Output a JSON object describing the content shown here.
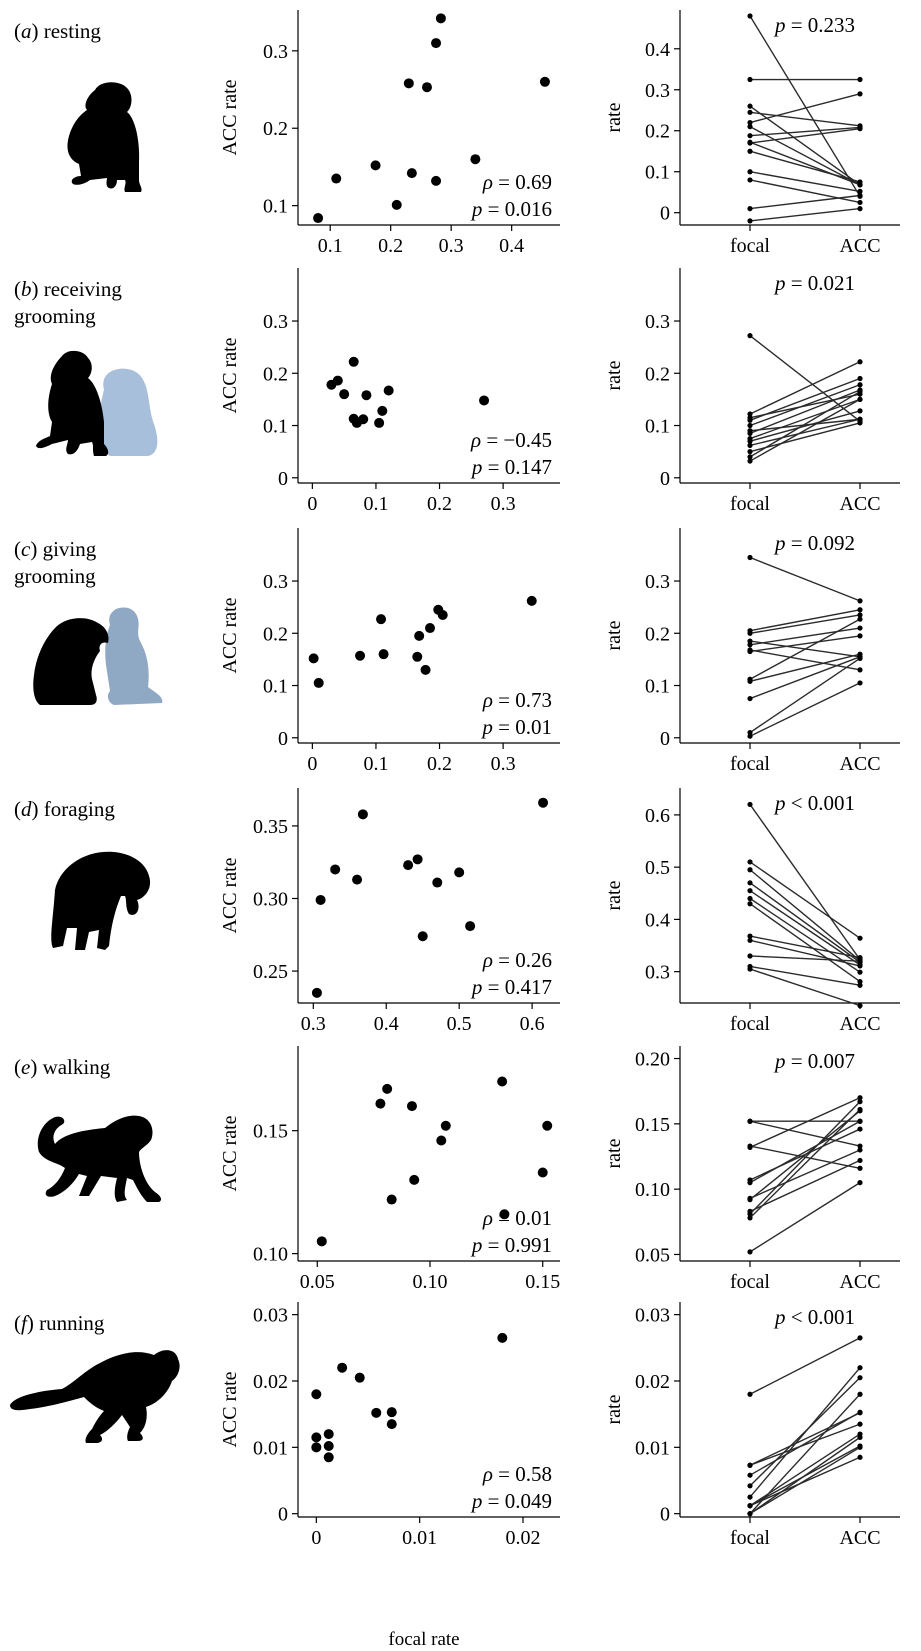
{
  "figure": {
    "xlabel_bottom": "focal rate"
  },
  "colors": {
    "ink": "#000000",
    "pair_line": "#2b2b2b",
    "groomer_light": "#a8bfdb",
    "groomer_medium": "#8fa9c4"
  },
  "rows": [
    {
      "id": "a",
      "letter": "a",
      "label_lines": [
        "resting"
      ],
      "icon": "monkey-sitting-icon"
    },
    {
      "id": "b",
      "letter": "b",
      "label_lines": [
        "receiving",
        "grooming"
      ],
      "icon": "monkey-receiving-grooming-icon"
    },
    {
      "id": "c",
      "letter": "c",
      "label_lines": [
        "giving",
        "grooming"
      ],
      "icon": "monkey-giving-grooming-icon"
    },
    {
      "id": "d",
      "letter": "d",
      "label_lines": [
        "foraging"
      ],
      "icon": "monkey-foraging-icon"
    },
    {
      "id": "e",
      "letter": "e",
      "label_lines": [
        "walking"
      ],
      "icon": "monkey-walking-icon"
    },
    {
      "id": "f",
      "letter": "f",
      "label_lines": [
        "running"
      ],
      "icon": "monkey-running-icon"
    }
  ],
  "chart_data": [
    {
      "panel": "a-scatter",
      "type": "scatter",
      "ylabel": "ACC rate",
      "xlabel": "",
      "xlim": [
        0.06,
        0.47
      ],
      "ylim": [
        0.075,
        0.345
      ],
      "xticks": [
        0.1,
        0.2,
        0.3,
        0.4
      ],
      "xtick_labels": [
        "0.1",
        "0.2",
        "0.3",
        "0.4"
      ],
      "yticks": [
        0.1,
        0.2,
        0.3
      ],
      "ytick_labels": [
        "0.1",
        "0.2",
        "0.3"
      ],
      "points": [
        [
          0.08,
          0.084
        ],
        [
          0.11,
          0.135
        ],
        [
          0.175,
          0.152
        ],
        [
          0.21,
          0.101
        ],
        [
          0.23,
          0.258
        ],
        [
          0.235,
          0.142
        ],
        [
          0.26,
          0.253
        ],
        [
          0.275,
          0.132
        ],
        [
          0.275,
          0.31
        ],
        [
          0.283,
          0.342
        ],
        [
          0.34,
          0.16
        ],
        [
          0.455,
          0.26
        ]
      ],
      "annotation": [
        "ρ = 0.69",
        "p = 0.016"
      ]
    },
    {
      "panel": "a-paired",
      "type": "line",
      "ylabel": "rate",
      "categories": [
        "focal",
        "ACC"
      ],
      "ylim": [
        -0.03,
        0.48
      ],
      "yticks": [
        0,
        0.1,
        0.2,
        0.3,
        0.4
      ],
      "ytick_labels": [
        "0",
        "0.1",
        "0.2",
        "0.3",
        "0.4"
      ],
      "pairs": [
        [
          0.48,
          0.04
        ],
        [
          0.325,
          0.325
        ],
        [
          0.26,
          0.068
        ],
        [
          0.245,
          0.212
        ],
        [
          0.22,
          0.29
        ],
        [
          0.21,
          0.068
        ],
        [
          0.188,
          0.208
        ],
        [
          0.172,
          0.068
        ],
        [
          0.15,
          0.075
        ],
        [
          0.1,
          0.052
        ],
        [
          0.01,
          0.042
        ],
        [
          -0.02,
          0.01
        ],
        [
          0.17,
          0.205
        ],
        [
          0.08,
          0.025
        ]
      ],
      "annotation": [
        "p = 0.233"
      ]
    },
    {
      "panel": "b-scatter",
      "type": "scatter",
      "ylabel": "ACC rate",
      "xlabel": "",
      "xlim": [
        -0.01,
        0.38
      ],
      "ylim": [
        -0.01,
        0.39
      ],
      "xticks": [
        0,
        0.1,
        0.2,
        0.3
      ],
      "xtick_labels": [
        "0",
        "0.1",
        "0.2",
        "0.3"
      ],
      "yticks": [
        0,
        0.1,
        0.2,
        0.3
      ],
      "ytick_labels": [
        "0",
        "0.1",
        "0.2",
        "0.3"
      ],
      "points": [
        [
          0.03,
          0.178
        ],
        [
          0.04,
          0.186
        ],
        [
          0.05,
          0.16
        ],
        [
          0.065,
          0.222
        ],
        [
          0.065,
          0.113
        ],
        [
          0.07,
          0.105
        ],
        [
          0.08,
          0.112
        ],
        [
          0.085,
          0.158
        ],
        [
          0.105,
          0.105
        ],
        [
          0.11,
          0.128
        ],
        [
          0.12,
          0.167
        ],
        [
          0.27,
          0.148
        ]
      ],
      "annotation": [
        "ρ = −0.45",
        "p = 0.147"
      ]
    },
    {
      "panel": "b-paired",
      "type": "line",
      "ylabel": "rate",
      "categories": [
        "focal",
        "ACC"
      ],
      "ylim": [
        -0.01,
        0.39
      ],
      "yticks": [
        0,
        0.1,
        0.2,
        0.3
      ],
      "ytick_labels": [
        "0",
        "0.1",
        "0.2",
        "0.3"
      ],
      "pairs": [
        [
          0.272,
          0.108
        ],
        [
          0.122,
          0.222
        ],
        [
          0.115,
          0.16
        ],
        [
          0.11,
          0.19
        ],
        [
          0.1,
          0.178
        ],
        [
          0.09,
          0.112
        ],
        [
          0.085,
          0.168
        ],
        [
          0.075,
          0.15
        ],
        [
          0.07,
          0.128
        ],
        [
          0.062,
          0.112
        ],
        [
          0.05,
          0.105
        ],
        [
          0.04,
          0.165
        ],
        [
          0.032,
          0.15
        ]
      ],
      "annotation": [
        "p = 0.021"
      ]
    },
    {
      "panel": "c-scatter",
      "type": "scatter",
      "ylabel": "ACC rate",
      "xlabel": "",
      "xlim": [
        -0.01,
        0.38
      ],
      "ylim": [
        -0.01,
        0.39
      ],
      "xticks": [
        0,
        0.1,
        0.2,
        0.3
      ],
      "xtick_labels": [
        "0",
        "0.1",
        "0.2",
        "0.3"
      ],
      "yticks": [
        0,
        0.1,
        0.2,
        0.3
      ],
      "ytick_labels": [
        "0",
        "0.1",
        "0.2",
        "0.3"
      ],
      "points": [
        [
          0.002,
          0.152
        ],
        [
          0.01,
          0.105
        ],
        [
          0.075,
          0.157
        ],
        [
          0.108,
          0.227
        ],
        [
          0.112,
          0.16
        ],
        [
          0.165,
          0.155
        ],
        [
          0.168,
          0.195
        ],
        [
          0.178,
          0.13
        ],
        [
          0.185,
          0.21
        ],
        [
          0.198,
          0.245
        ],
        [
          0.205,
          0.235
        ],
        [
          0.345,
          0.262
        ]
      ],
      "annotation": [
        "ρ = 0.73",
        "p = 0.01"
      ]
    },
    {
      "panel": "c-paired",
      "type": "line",
      "ylabel": "rate",
      "categories": [
        "focal",
        "ACC"
      ],
      "ylim": [
        -0.01,
        0.39
      ],
      "yticks": [
        0,
        0.1,
        0.2,
        0.3
      ],
      "ytick_labels": [
        "0",
        "0.1",
        "0.2",
        "0.3"
      ],
      "pairs": [
        [
          0.345,
          0.262
        ],
        [
          0.205,
          0.245
        ],
        [
          0.2,
          0.235
        ],
        [
          0.185,
          0.155
        ],
        [
          0.178,
          0.21
        ],
        [
          0.168,
          0.13
        ],
        [
          0.165,
          0.195
        ],
        [
          0.112,
          0.227
        ],
        [
          0.108,
          0.16
        ],
        [
          0.075,
          0.155
        ],
        [
          0.01,
          0.152
        ],
        [
          0.003,
          0.105
        ]
      ],
      "annotation": [
        "p = 0.092"
      ]
    },
    {
      "panel": "d-scatter",
      "type": "scatter",
      "ylabel": "ACC rate",
      "xlabel": "",
      "xlim": [
        0.29,
        0.63
      ],
      "ylim": [
        0.228,
        0.372
      ],
      "xticks": [
        0.3,
        0.4,
        0.5,
        0.6
      ],
      "xtick_labels": [
        "0.3",
        "0.4",
        "0.5",
        "0.6"
      ],
      "yticks": [
        0.25,
        0.3,
        0.35
      ],
      "ytick_labels": [
        "0.25",
        "0.30",
        "0.35"
      ],
      "points": [
        [
          0.305,
          0.235
        ],
        [
          0.31,
          0.299
        ],
        [
          0.33,
          0.32
        ],
        [
          0.36,
          0.313
        ],
        [
          0.368,
          0.358
        ],
        [
          0.43,
          0.323
        ],
        [
          0.443,
          0.327
        ],
        [
          0.45,
          0.274
        ],
        [
          0.47,
          0.311
        ],
        [
          0.5,
          0.318
        ],
        [
          0.515,
          0.281
        ],
        [
          0.615,
          0.366
        ]
      ],
      "annotation": [
        "ρ = 0.26",
        "p = 0.417"
      ]
    },
    {
      "panel": "d-paired",
      "type": "line",
      "ylabel": "rate",
      "categories": [
        "focal",
        "ACC"
      ],
      "ylim": [
        0.24,
        0.64
      ],
      "yticks": [
        0.3,
        0.4,
        0.5,
        0.6
      ],
      "ytick_labels": [
        "0.3",
        "0.4",
        "0.5",
        "0.6"
      ],
      "pairs": [
        [
          0.62,
          0.323
        ],
        [
          0.51,
          0.364
        ],
        [
          0.495,
          0.321
        ],
        [
          0.47,
          0.318
        ],
        [
          0.455,
          0.313
        ],
        [
          0.44,
          0.299
        ],
        [
          0.43,
          0.281
        ],
        [
          0.368,
          0.327
        ],
        [
          0.36,
          0.311
        ],
        [
          0.33,
          0.32
        ],
        [
          0.31,
          0.274
        ],
        [
          0.305,
          0.235
        ]
      ],
      "annotation": [
        "p < 0.001"
      ]
    },
    {
      "panel": "e-scatter",
      "type": "scatter",
      "ylabel": "ACC rate",
      "xlabel": "",
      "xlim": [
        0.045,
        0.155
      ],
      "ylim": [
        0.097,
        0.182
      ],
      "xticks": [
        0.05,
        0.1,
        0.15
      ],
      "xtick_labels": [
        "0.05",
        "0.10",
        "0.15"
      ],
      "yticks": [
        0.1,
        0.15
      ],
      "ytick_labels": [
        "0.10",
        "0.15"
      ],
      "points": [
        [
          0.052,
          0.105
        ],
        [
          0.078,
          0.161
        ],
        [
          0.081,
          0.167
        ],
        [
          0.083,
          0.122
        ],
        [
          0.092,
          0.16
        ],
        [
          0.093,
          0.13
        ],
        [
          0.105,
          0.146
        ],
        [
          0.107,
          0.152
        ],
        [
          0.132,
          0.17
        ],
        [
          0.133,
          0.116
        ],
        [
          0.15,
          0.133
        ],
        [
          0.152,
          0.152
        ]
      ],
      "annotation": [
        "ρ = 0.01",
        "p = 0.991"
      ]
    },
    {
      "panel": "e-paired",
      "type": "line",
      "ylabel": "rate",
      "categories": [
        "focal",
        "ACC"
      ],
      "ylim": [
        0.045,
        0.205
      ],
      "yticks": [
        0.05,
        0.1,
        0.15,
        0.2
      ],
      "ytick_labels": [
        "0.05",
        "0.10",
        "0.15",
        "0.20"
      ],
      "pairs": [
        [
          0.152,
          0.152
        ],
        [
          0.152,
          0.133
        ],
        [
          0.133,
          0.116
        ],
        [
          0.132,
          0.17
        ],
        [
          0.107,
          0.146
        ],
        [
          0.105,
          0.152
        ],
        [
          0.093,
          0.13
        ],
        [
          0.092,
          0.16
        ],
        [
          0.083,
          0.122
        ],
        [
          0.081,
          0.167
        ],
        [
          0.078,
          0.161
        ],
        [
          0.052,
          0.105
        ]
      ],
      "annotation": [
        "p = 0.007"
      ]
    },
    {
      "panel": "f-scatter",
      "type": "scatter",
      "ylabel": "ACC rate",
      "xlabel": "focal rate",
      "xlim": [
        -0.001,
        0.023
      ],
      "ylim": [
        -0.0005,
        0.031
      ],
      "xticks": [
        0,
        0.01,
        0.02
      ],
      "xtick_labels": [
        "0",
        "0.01",
        "0.02"
      ],
      "yticks": [
        0,
        0.01,
        0.02,
        0.03
      ],
      "ytick_labels": [
        "0",
        "0.01",
        "0.02",
        "0.03"
      ],
      "points": [
        [
          0.0,
          0.0115
        ],
        [
          0.0,
          0.01
        ],
        [
          0.0,
          0.018
        ],
        [
          0.0012,
          0.012
        ],
        [
          0.0012,
          0.0102
        ],
        [
          0.0012,
          0.0085
        ],
        [
          0.0025,
          0.022
        ],
        [
          0.0042,
          0.0205
        ],
        [
          0.0058,
          0.0152
        ],
        [
          0.0073,
          0.0153
        ],
        [
          0.0073,
          0.0135
        ],
        [
          0.018,
          0.0265
        ]
      ],
      "annotation": [
        "ρ = 0.58",
        "p = 0.049"
      ]
    },
    {
      "panel": "f-paired",
      "type": "line",
      "ylabel": "rate",
      "categories": [
        "focal",
        "ACC"
      ],
      "ylim": [
        -0.0005,
        0.031
      ],
      "yticks": [
        0,
        0.01,
        0.02,
        0.03
      ],
      "ytick_labels": [
        "0",
        "0.01",
        "0.02",
        "0.03"
      ],
      "pairs": [
        [
          0.018,
          0.0265
        ],
        [
          0.0073,
          0.0152
        ],
        [
          0.0073,
          0.0135
        ],
        [
          0.0058,
          0.0153
        ],
        [
          0.0042,
          0.0205
        ],
        [
          0.0025,
          0.022
        ],
        [
          0.0012,
          0.012
        ],
        [
          0.0012,
          0.0102
        ],
        [
          0.0012,
          0.0085
        ],
        [
          0.0,
          0.018
        ],
        [
          0.0,
          0.0115
        ],
        [
          0.0,
          0.01
        ]
      ],
      "annotation": [
        "p < 0.001"
      ]
    }
  ]
}
